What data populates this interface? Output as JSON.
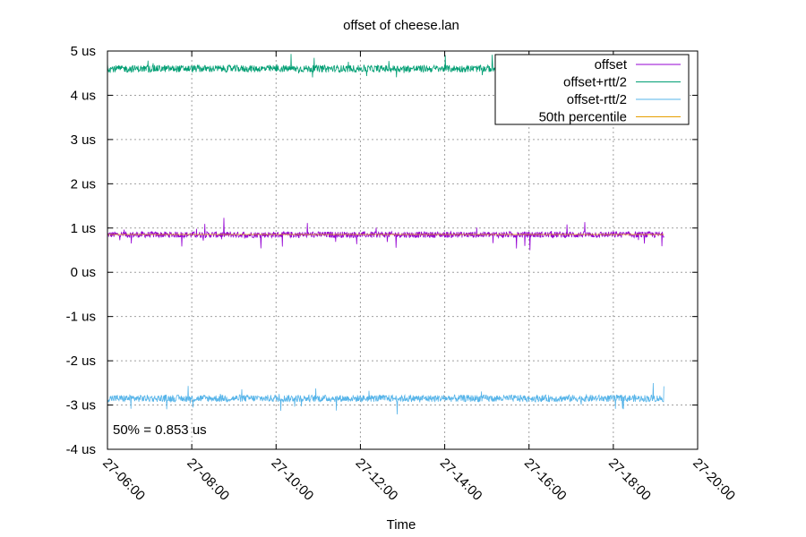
{
  "chart_data": {
    "type": "line",
    "title": "offset of cheese.lan",
    "xlabel": "Time",
    "ylabel": "",
    "x_ticks": [
      "27-06:00",
      "27-08:00",
      "27-10:00",
      "27-12:00",
      "27-14:00",
      "27-16:00",
      "27-18:00",
      "27-20:00"
    ],
    "x_tick_hours": [
      6,
      8,
      10,
      12,
      14,
      16,
      18,
      20
    ],
    "xlim_hours": [
      6,
      20
    ],
    "x_data_range_hours": [
      6.0,
      19.2
    ],
    "y_ticks": [
      "-4 us",
      "-3 us",
      "-2 us",
      "-1 us",
      "0 us",
      "1 us",
      "2 us",
      "3 us",
      "4 us",
      "5 us"
    ],
    "y_tick_values": [
      -4,
      -3,
      -2,
      -1,
      0,
      1,
      2,
      3,
      4,
      5
    ],
    "ylim": [
      -4,
      5
    ],
    "y_unit": "us",
    "grid": true,
    "legend_position": "top-right",
    "annotation": "50% = 0.853 us",
    "series": [
      {
        "name": "offset",
        "color": "#9400d3",
        "level": 0.85,
        "noise": 0.07,
        "spike": 0.35
      },
      {
        "name": "offset+rtt/2",
        "color": "#009e73",
        "level": 4.6,
        "noise": 0.08,
        "spike": 0.35
      },
      {
        "name": "offset-rtt/2",
        "color": "#56b4e9",
        "level": -2.85,
        "noise": 0.08,
        "spike": 0.35
      },
      {
        "name": "50th percentile",
        "color": "#e69f00",
        "level": 0.853,
        "noise": 0,
        "spike": 0
      }
    ]
  }
}
